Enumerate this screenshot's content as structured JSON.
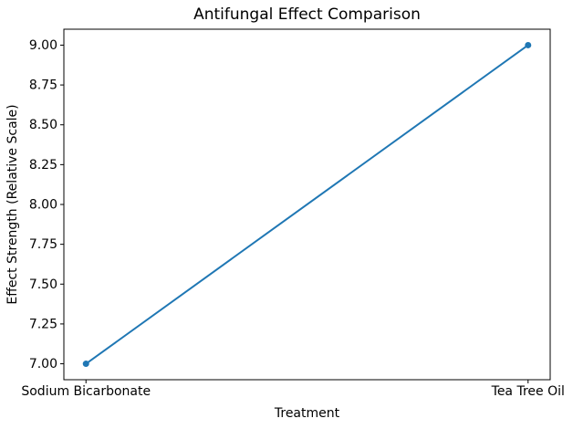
{
  "chart_data": {
    "type": "line",
    "title": "Antifungal Effect Comparison",
    "xlabel": "Treatment",
    "ylabel": "Effect Strength (Relative Scale)",
    "categories": [
      "Sodium Bicarbonate",
      "Tea Tree Oil"
    ],
    "values": [
      7.0,
      9.0
    ],
    "yticks": [
      7.0,
      7.25,
      7.5,
      7.75,
      8.0,
      8.25,
      8.5,
      8.75,
      9.0
    ],
    "ytick_labels": [
      "7.00",
      "7.25",
      "7.50",
      "7.75",
      "8.00",
      "8.25",
      "8.50",
      "8.75",
      "9.00"
    ],
    "ylim": [
      6.9,
      9.1
    ],
    "grid": false,
    "legend": "none",
    "line_color": "#1f77b4",
    "marker": "circle",
    "marker_color": "#1f77b4",
    "axis_color": "#000000",
    "text_color": "#000000",
    "background_color": "#ffffff"
  }
}
